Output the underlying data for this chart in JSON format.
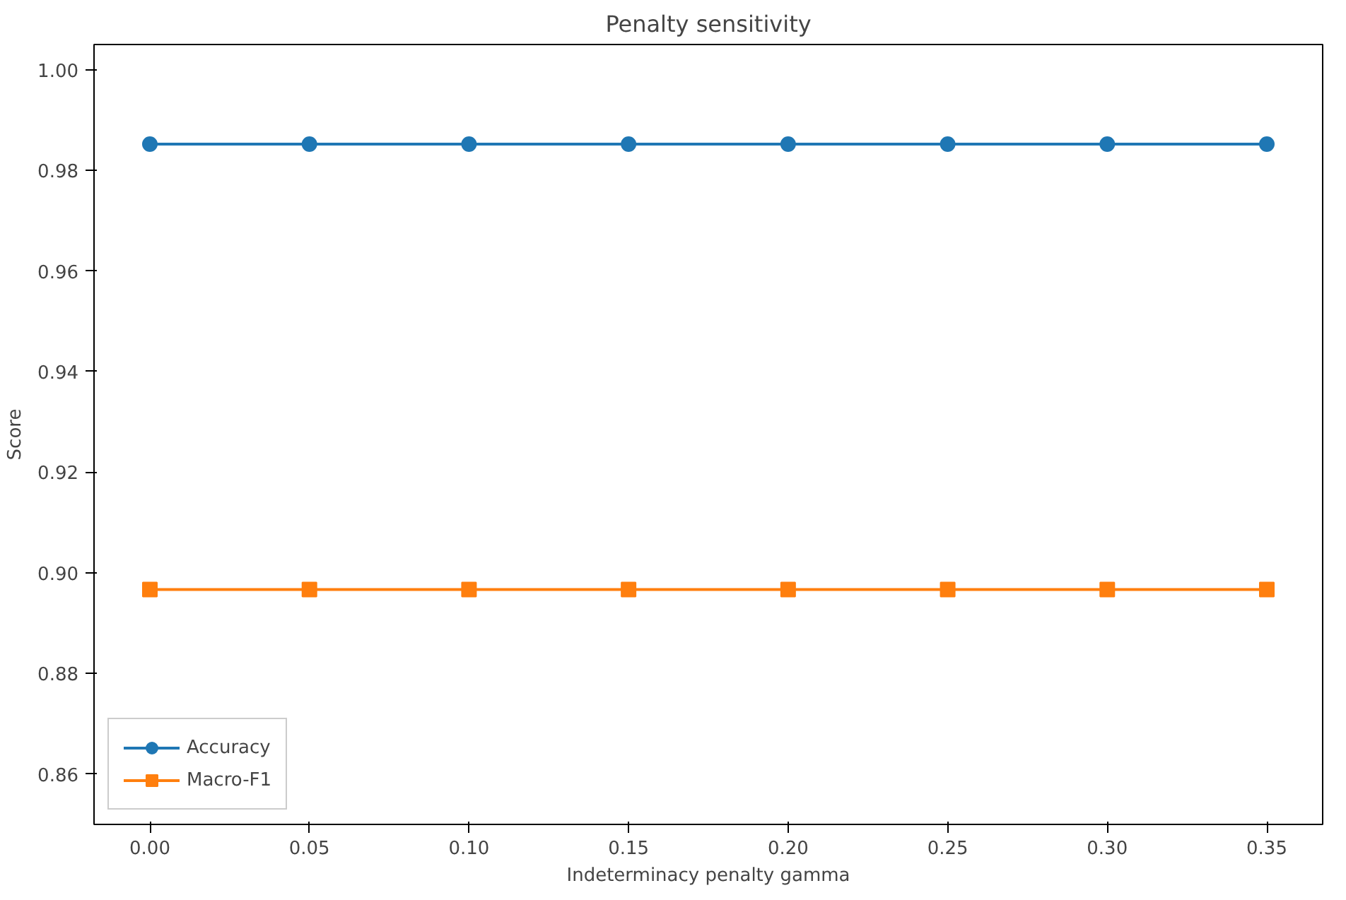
{
  "chart_data": {
    "type": "line",
    "title": "Penalty sensitivity",
    "xlabel": "Indeterminacy penalty gamma",
    "ylabel": "Score",
    "x": [
      0.0,
      0.05,
      0.1,
      0.15,
      0.2,
      0.25,
      0.3,
      0.35
    ],
    "series": [
      {
        "name": "Accuracy",
        "color": "#1f77b4",
        "marker": "circle",
        "values": [
          0.9852,
          0.9852,
          0.9852,
          0.9852,
          0.9852,
          0.9852,
          0.9852,
          0.9852
        ]
      },
      {
        "name": "Macro-F1",
        "color": "#ff7f0e",
        "marker": "square",
        "values": [
          0.8967,
          0.8967,
          0.8967,
          0.8967,
          0.8967,
          0.8967,
          0.8967,
          0.8967
        ]
      }
    ],
    "xlim": [
      -0.0175,
      0.3675
    ],
    "ylim": [
      0.85,
      1.005
    ],
    "xticks": [
      {
        "value": 0.0,
        "label": "0.00"
      },
      {
        "value": 0.05,
        "label": "0.05"
      },
      {
        "value": 0.1,
        "label": "0.10"
      },
      {
        "value": 0.15,
        "label": "0.15"
      },
      {
        "value": 0.2,
        "label": "0.20"
      },
      {
        "value": 0.25,
        "label": "0.25"
      },
      {
        "value": 0.3,
        "label": "0.30"
      },
      {
        "value": 0.35,
        "label": "0.35"
      }
    ],
    "yticks": [
      {
        "value": 0.86,
        "label": "0.86"
      },
      {
        "value": 0.88,
        "label": "0.88"
      },
      {
        "value": 0.9,
        "label": "0.90"
      },
      {
        "value": 0.92,
        "label": "0.92"
      },
      {
        "value": 0.94,
        "label": "0.94"
      },
      {
        "value": 0.96,
        "label": "0.96"
      },
      {
        "value": 0.98,
        "label": "0.98"
      },
      {
        "value": 1.0,
        "label": "1.00"
      }
    ],
    "grid": false,
    "legend": "bottom left",
    "line_style": "solid"
  }
}
